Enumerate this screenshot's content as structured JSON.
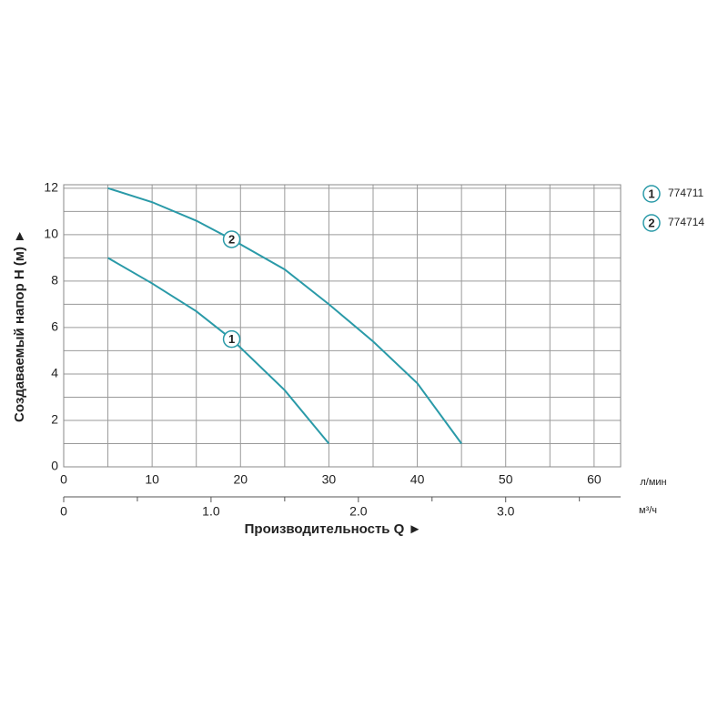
{
  "chart_data": {
    "type": "line",
    "ylabel": "Создаваемый напор H (м) ►",
    "xlabel": "Производительность Q ►",
    "xunit": "л/мин",
    "x2unit": "м³/ч",
    "xlim": [
      0,
      63
    ],
    "ylim": [
      0,
      12.15
    ],
    "xticks": [
      0,
      10,
      20,
      30,
      40,
      50,
      60
    ],
    "yticks": [
      0,
      2,
      4,
      6,
      8,
      10,
      12
    ],
    "xgrid": [
      5,
      10,
      15,
      20,
      25,
      30,
      35,
      40,
      45,
      50,
      55,
      60
    ],
    "ygrid": [
      1,
      2,
      3,
      4,
      5,
      6,
      7,
      8,
      9,
      10,
      11,
      12
    ],
    "x2lim": [
      0,
      3.78
    ],
    "x2ticks": [
      0,
      {
        "value": 1,
        "label": "1.0"
      },
      {
        "value": 2,
        "label": "2.0"
      },
      {
        "value": 3,
        "label": "3.0"
      }
    ],
    "x2minor": [
      0.5,
      1.5,
      2.5,
      3.5
    ],
    "series": [
      {
        "name": "774711",
        "marker": "1",
        "marker_index": 3,
        "color": "#2a9aa8",
        "x": [
          5,
          10,
          15,
          19,
          25,
          30
        ],
        "values": [
          9,
          7.9,
          6.7,
          5.5,
          3.3,
          1
        ]
      },
      {
        "name": "774714",
        "marker": "2",
        "marker_index": 3,
        "color": "#2a9aa8",
        "x": [
          5,
          10,
          15,
          19,
          25,
          30,
          35,
          40,
          45
        ],
        "values": [
          12,
          11.4,
          10.6,
          9.8,
          8.5,
          7,
          5.4,
          3.6,
          1
        ]
      }
    ]
  }
}
